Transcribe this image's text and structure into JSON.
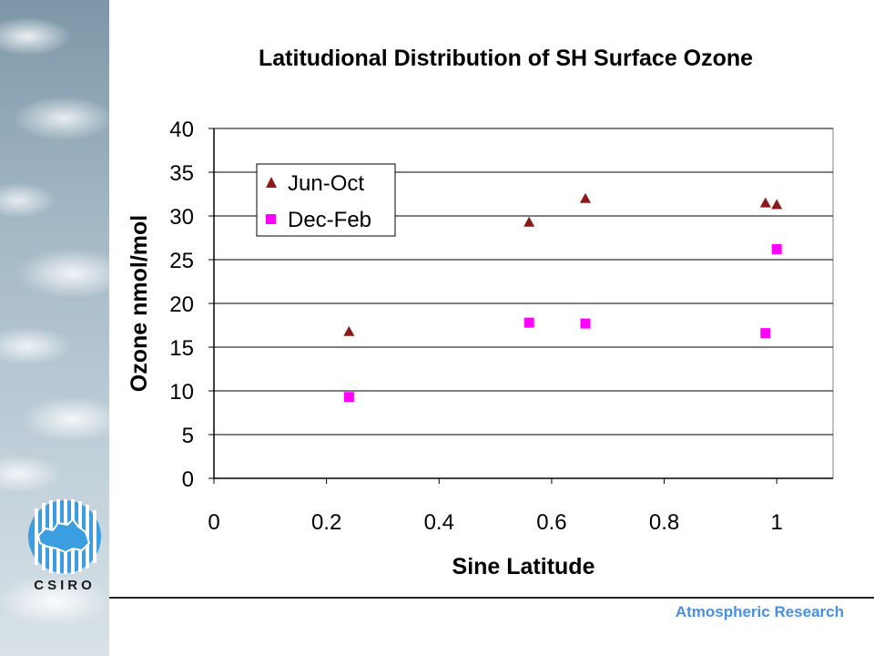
{
  "chart_data": {
    "type": "scatter",
    "title": "Latitudional Distribution of SH Surface Ozone",
    "xlabel": "Sine Latitude",
    "ylabel": "Ozone nmol/mol",
    "xlim": [
      0,
      1.1
    ],
    "ylim": [
      0,
      40
    ],
    "x_ticks": [
      "0",
      "0.2",
      "0.4",
      "0.6",
      "0.8",
      "1"
    ],
    "y_ticks": [
      "0",
      "5",
      "10",
      "15",
      "20",
      "25",
      "30",
      "35",
      "40"
    ],
    "grid": "horizontal",
    "legend_position": "top-left",
    "series": [
      {
        "name": "Jun-Oct",
        "marker": "triangle",
        "color": "#8b1a1a",
        "points": [
          {
            "x": 0.24,
            "y": 16.8
          },
          {
            "x": 0.56,
            "y": 29.3
          },
          {
            "x": 0.66,
            "y": 32.0
          },
          {
            "x": 0.98,
            "y": 31.5
          },
          {
            "x": 1.0,
            "y": 31.3
          }
        ]
      },
      {
        "name": "Dec-Feb",
        "marker": "square",
        "color": "#ff00ff",
        "points": [
          {
            "x": 0.24,
            "y": 9.3
          },
          {
            "x": 0.56,
            "y": 17.8
          },
          {
            "x": 0.66,
            "y": 17.7
          },
          {
            "x": 0.98,
            "y": 16.6
          },
          {
            "x": 1.0,
            "y": 26.2
          }
        ]
      }
    ]
  },
  "branding": {
    "logo_text": "CSIRO",
    "footer": "Atmospheric Research"
  }
}
